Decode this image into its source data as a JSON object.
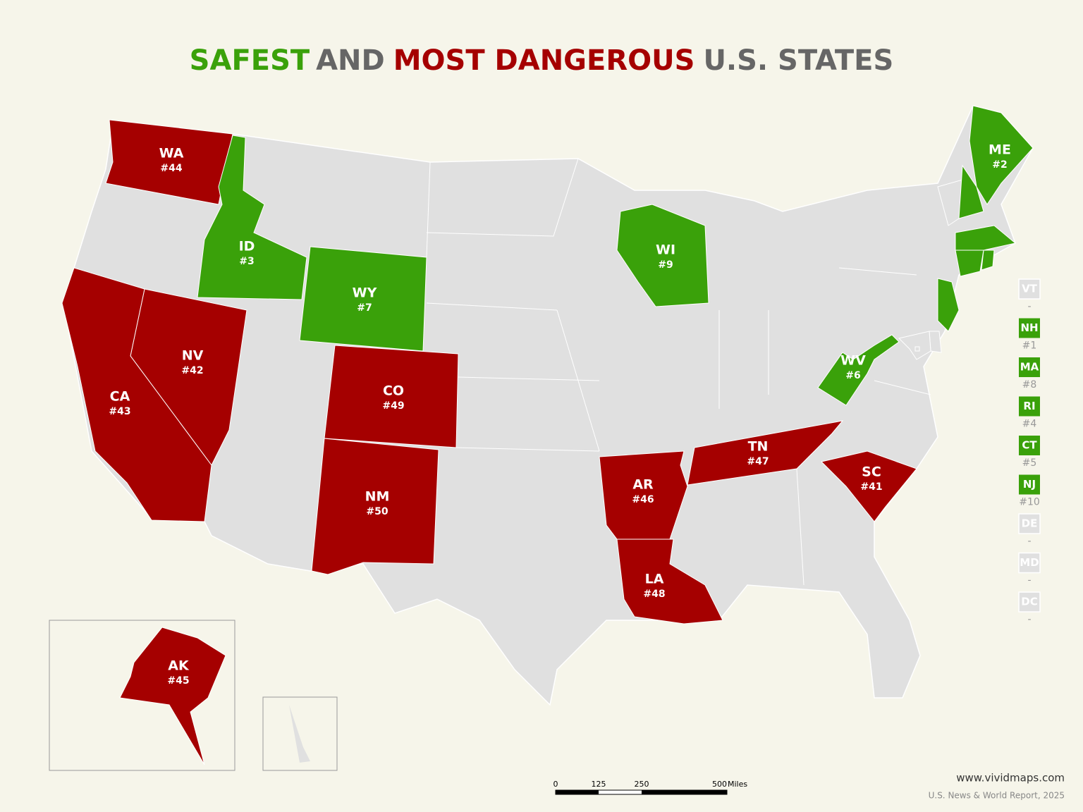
{
  "title": [
    {
      "text": "SAFEST",
      "color": "#3aa10a"
    },
    {
      "text": "AND",
      "color": "#666666"
    },
    {
      "text": "MOST DANGEROUS",
      "color": "#a50000"
    },
    {
      "text": "U.S. STATES",
      "color": "#666666"
    }
  ],
  "colors": {
    "safe": "#3aa10a",
    "dangerous": "#a50000",
    "none": "#e0e0e0"
  },
  "states": [
    {
      "abbr": "WA",
      "rank": "#44",
      "group": "dangerous"
    },
    {
      "abbr": "ID",
      "rank": "#3",
      "group": "safe"
    },
    {
      "abbr": "WY",
      "rank": "#7",
      "group": "safe"
    },
    {
      "abbr": "NV",
      "rank": "#42",
      "group": "dangerous"
    },
    {
      "abbr": "CA",
      "rank": "#43",
      "group": "dangerous"
    },
    {
      "abbr": "CO",
      "rank": "#49",
      "group": "dangerous"
    },
    {
      "abbr": "NM",
      "rank": "#50",
      "group": "dangerous"
    },
    {
      "abbr": "AR",
      "rank": "#46",
      "group": "dangerous"
    },
    {
      "abbr": "LA",
      "rank": "#48",
      "group": "dangerous"
    },
    {
      "abbr": "TN",
      "rank": "#47",
      "group": "dangerous"
    },
    {
      "abbr": "SC",
      "rank": "#41",
      "group": "dangerous"
    },
    {
      "abbr": "WI",
      "rank": "#9",
      "group": "safe"
    },
    {
      "abbr": "WV",
      "rank": "#6",
      "group": "safe"
    },
    {
      "abbr": "ME",
      "rank": "#2",
      "group": "safe"
    },
    {
      "abbr": "AK",
      "rank": "#45",
      "group": "dangerous"
    }
  ],
  "legend": [
    {
      "abbr": "VT",
      "rank": "-",
      "group": "none"
    },
    {
      "abbr": "NH",
      "rank": "#1",
      "group": "safe"
    },
    {
      "abbr": "MA",
      "rank": "#8",
      "group": "safe"
    },
    {
      "abbr": "RI",
      "rank": "#4",
      "group": "safe"
    },
    {
      "abbr": "CT",
      "rank": "#5",
      "group": "safe"
    },
    {
      "abbr": "NJ",
      "rank": "#10",
      "group": "safe"
    },
    {
      "abbr": "DE",
      "rank": "-",
      "group": "none"
    },
    {
      "abbr": "MD",
      "rank": "-",
      "group": "none"
    },
    {
      "abbr": "DC",
      "rank": "-",
      "group": "none"
    }
  ],
  "scale": {
    "ticks": [
      "0",
      "125",
      "250",
      "500"
    ],
    "unit": "Miles"
  },
  "source": {
    "website": "www.vividmaps.com",
    "citation": "U.S. News & World Report, 2025"
  }
}
